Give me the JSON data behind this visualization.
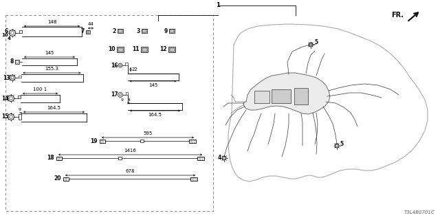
{
  "bg_color": "#ffffff",
  "diagram_code": "T3L4B0701C",
  "fig_width": 6.4,
  "fig_height": 3.2,
  "dpi": 100,
  "black": "#000000",
  "gray": "#888888",
  "darkgray": "#555555"
}
